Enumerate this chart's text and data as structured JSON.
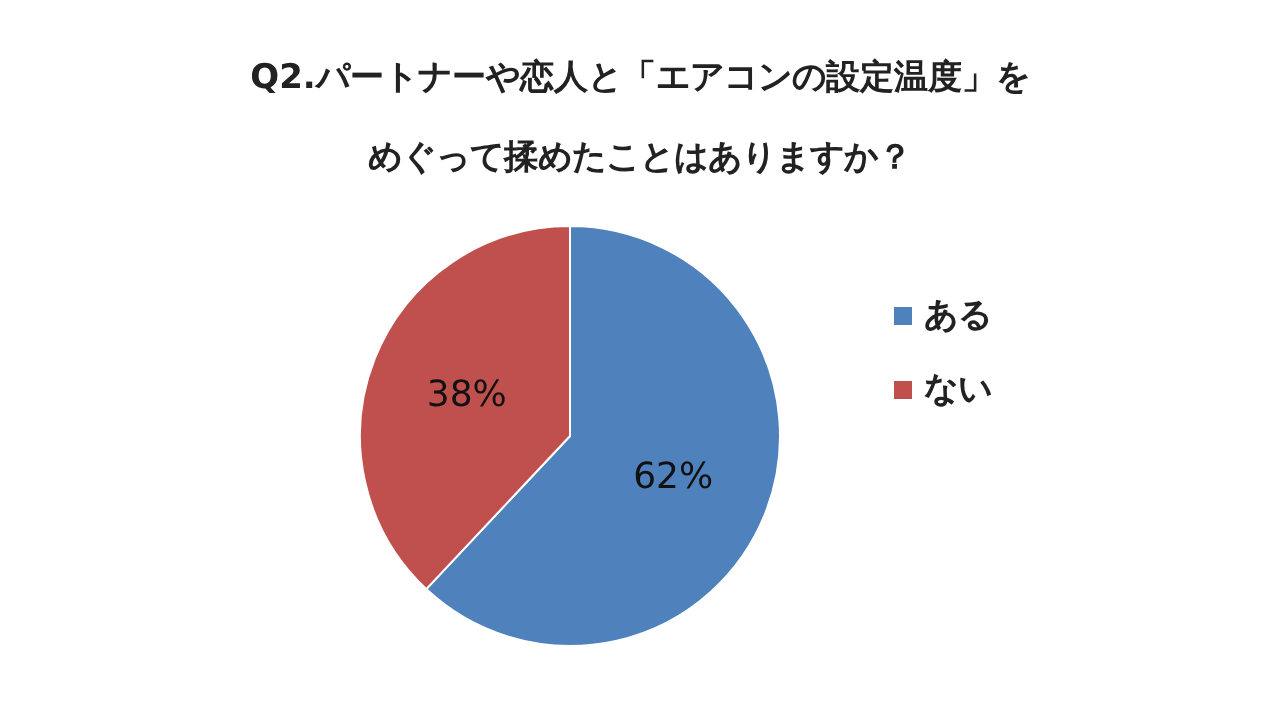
{
  "chart_data": {
    "type": "pie",
    "title": "Q2.パートナーや恋人と「エアコンの設定温度」をめぐって揉めたことはありますか？",
    "categories": [
      "ある",
      "ない"
    ],
    "values": [
      62,
      38
    ],
    "colors": [
      "#4f81bd",
      "#c0504d"
    ],
    "value_labels": [
      "62%",
      "38%"
    ],
    "legend": "right"
  }
}
